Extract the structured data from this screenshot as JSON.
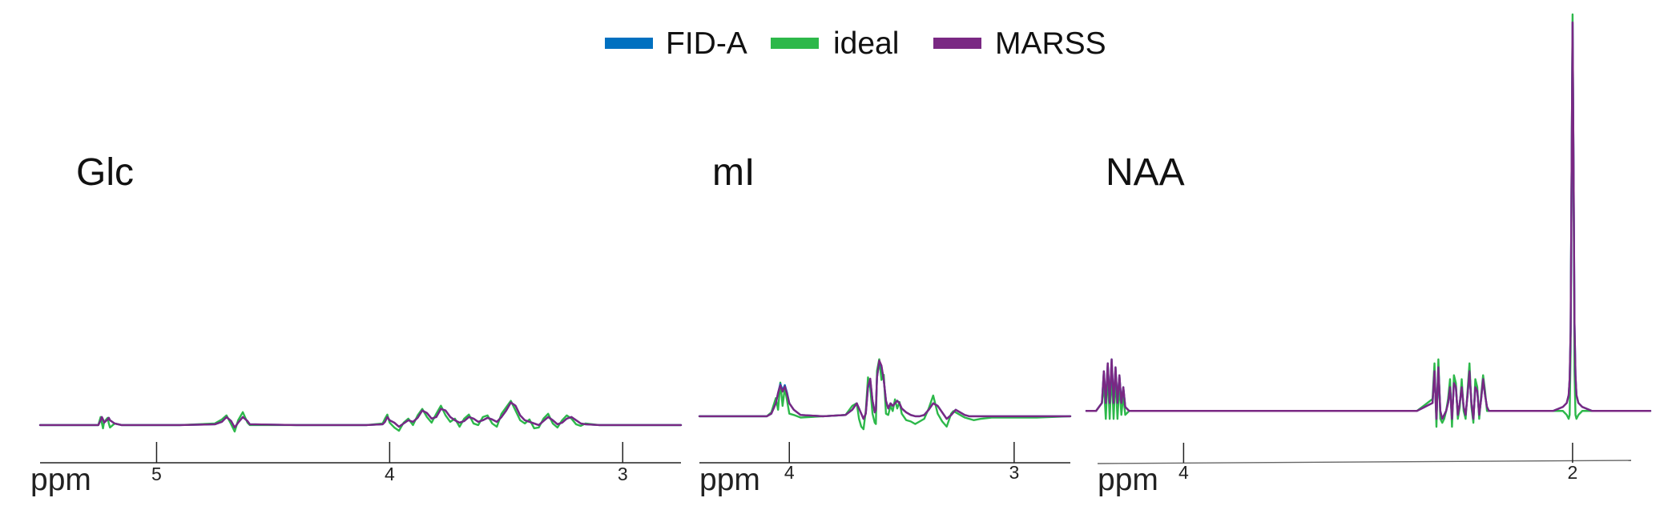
{
  "legend": {
    "items": [
      {
        "label": "FID-A",
        "color": "#0070c0"
      },
      {
        "label": "ideal",
        "color": "#2db84a"
      },
      {
        "label": "MARSS",
        "color": "#7a2883"
      }
    ]
  },
  "chart_data": [
    {
      "type": "line",
      "title": "Glc",
      "xlabel": "ppm",
      "x_reversed": true,
      "xlim": [
        5.5,
        2.75
      ],
      "ylim": [
        -0.05,
        1.0
      ],
      "xticks": [
        5,
        4,
        3
      ],
      "x": [
        5.5,
        5.25,
        5.24,
        5.235,
        5.23,
        5.225,
        5.21,
        5.205,
        5.2,
        5.18,
        5.15,
        4.9,
        4.75,
        4.72,
        4.7,
        4.68,
        4.665,
        4.65,
        4.63,
        4.61,
        4.6,
        4.4,
        4.1,
        4.03,
        4.02,
        4.01,
        4.0,
        3.98,
        3.96,
        3.94,
        3.92,
        3.9,
        3.88,
        3.86,
        3.84,
        3.82,
        3.8,
        3.78,
        3.76,
        3.74,
        3.72,
        3.7,
        3.68,
        3.66,
        3.64,
        3.62,
        3.6,
        3.58,
        3.56,
        3.54,
        3.52,
        3.5,
        3.48,
        3.46,
        3.44,
        3.42,
        3.4,
        3.38,
        3.36,
        3.34,
        3.32,
        3.3,
        3.28,
        3.26,
        3.24,
        3.22,
        3.2,
        3.18,
        3.16,
        3.1,
        2.9,
        2.75
      ],
      "series": [
        {
          "name": "FID-A",
          "values": [
            0,
            0,
            0.06,
            0.1,
            0.07,
            0.03,
            0.07,
            0.09,
            0.06,
            0.02,
            0,
            0,
            0.01,
            0.04,
            0.1,
            0.05,
            -0.03,
            0.03,
            0.1,
            0.05,
            0.01,
            0,
            0,
            0.01,
            0.04,
            0.1,
            0.06,
            0.03,
            -0.02,
            0.02,
            0.06,
            0.04,
            0.09,
            0.18,
            0.15,
            0.08,
            0.1,
            0.2,
            0.18,
            0.1,
            0.06,
            0.03,
            0.05,
            0.1,
            0.08,
            0.04,
            0.06,
            0.09,
            0.07,
            0.04,
            0.1,
            0.18,
            0.28,
            0.24,
            0.12,
            0.06,
            0.04,
            0.02,
            0.0,
            0.05,
            0.1,
            0.06,
            0.01,
            0.03,
            0.08,
            0.1,
            0.06,
            0.02,
            0.01,
            0,
            0,
            0
          ]
        },
        {
          "name": "ideal",
          "values": [
            0,
            0,
            0.1,
            0.03,
            -0.04,
            0.04,
            0.09,
            0.02,
            -0.03,
            0.02,
            0,
            0,
            0.02,
            0.07,
            0.12,
            0.01,
            -0.08,
            0.06,
            0.16,
            0.03,
            0.0,
            0,
            0,
            0.02,
            0.08,
            0.13,
            0.03,
            -0.03,
            -0.07,
            0.03,
            0.08,
            0.0,
            0.12,
            0.2,
            0.1,
            0.03,
            0.14,
            0.24,
            0.12,
            0.04,
            0.08,
            -0.02,
            0.08,
            0.13,
            0.02,
            0.0,
            0.1,
            0.12,
            0.02,
            -0.02,
            0.14,
            0.22,
            0.3,
            0.18,
            0.06,
            0.02,
            0.07,
            -0.04,
            -0.03,
            0.08,
            0.14,
            0.02,
            -0.03,
            0.06,
            0.12,
            0.08,
            0.01,
            -0.01,
            0.02,
            0,
            0,
            0
          ]
        },
        {
          "name": "MARSS",
          "values": [
            0,
            0,
            0.06,
            0.1,
            0.07,
            0.03,
            0.07,
            0.09,
            0.06,
            0.02,
            0,
            0,
            0.01,
            0.04,
            0.1,
            0.05,
            -0.03,
            0.03,
            0.1,
            0.05,
            0.01,
            0,
            0,
            0.01,
            0.04,
            0.1,
            0.06,
            0.03,
            -0.02,
            0.02,
            0.06,
            0.04,
            0.09,
            0.18,
            0.15,
            0.08,
            0.1,
            0.2,
            0.18,
            0.1,
            0.06,
            0.03,
            0.05,
            0.1,
            0.08,
            0.04,
            0.06,
            0.09,
            0.07,
            0.04,
            0.1,
            0.18,
            0.28,
            0.24,
            0.12,
            0.06,
            0.04,
            0.02,
            0.0,
            0.05,
            0.1,
            0.06,
            0.01,
            0.03,
            0.08,
            0.1,
            0.06,
            0.02,
            0.01,
            0,
            0,
            0
          ]
        }
      ]
    },
    {
      "type": "line",
      "title": "mI",
      "xlabel": "ppm",
      "x_reversed": true,
      "xlim": [
        4.4,
        2.75
      ],
      "ylim": [
        -0.05,
        1.0
      ],
      "xticks": [
        4,
        3
      ],
      "x": [
        4.4,
        4.1,
        4.08,
        4.06,
        4.05,
        4.04,
        4.03,
        4.02,
        4.01,
        4.0,
        3.98,
        3.95,
        3.85,
        3.75,
        3.72,
        3.7,
        3.69,
        3.68,
        3.67,
        3.66,
        3.65,
        3.64,
        3.63,
        3.62,
        3.615,
        3.61,
        3.6,
        3.59,
        3.58,
        3.57,
        3.56,
        3.55,
        3.54,
        3.53,
        3.52,
        3.51,
        3.5,
        3.48,
        3.46,
        3.44,
        3.42,
        3.4,
        3.38,
        3.36,
        3.34,
        3.32,
        3.3,
        3.28,
        3.27,
        3.26,
        3.25,
        3.24,
        3.23,
        3.22,
        3.2,
        3.18,
        3.15,
        3.1,
        2.9,
        2.75
      ],
      "series": [
        {
          "name": "FID-A",
          "values": [
            0,
            0,
            0.02,
            0.1,
            0.18,
            0.25,
            0.2,
            0.24,
            0.18,
            0.1,
            0.05,
            0.01,
            0,
            0.01,
            0.05,
            0.1,
            0.06,
            0.02,
            -0.02,
            0.02,
            0.22,
            0.28,
            0.12,
            0.03,
            0.05,
            0.3,
            0.42,
            0.38,
            0.28,
            0.12,
            0.06,
            0.1,
            0.08,
            0.1,
            0.12,
            0.1,
            0.06,
            0.03,
            0.01,
            0.0,
            0.0,
            0.01,
            0.05,
            0.1,
            0.08,
            0.03,
            -0.02,
            0.01,
            0.03,
            0.05,
            0.04,
            0.03,
            0.02,
            0.01,
            0,
            0,
            0,
            0,
            0,
            0
          ]
        },
        {
          "name": "ideal",
          "values": [
            0,
            0,
            0.03,
            0.14,
            0.05,
            0.26,
            0.08,
            0.22,
            0.12,
            0.02,
            0.01,
            -0.01,
            0,
            0.01,
            0.08,
            0.1,
            -0.02,
            -0.08,
            -0.1,
            0.04,
            0.3,
            0.22,
            0.02,
            -0.05,
            -0.06,
            0.35,
            0.44,
            0.28,
            0.32,
            0.02,
            0.01,
            0.08,
            0.04,
            0.13,
            0.06,
            0.11,
            0.02,
            -0.03,
            -0.04,
            -0.06,
            -0.04,
            -0.02,
            0.06,
            0.16,
            0.02,
            -0.04,
            -0.08,
            0.02,
            0.04,
            0.03,
            0.02,
            0.01,
            0.0,
            -0.01,
            -0.02,
            -0.03,
            -0.02,
            -0.01,
            -0.01,
            0
          ]
        },
        {
          "name": "MARSS",
          "values": [
            0,
            0,
            0.02,
            0.1,
            0.18,
            0.24,
            0.19,
            0.23,
            0.17,
            0.1,
            0.05,
            0.01,
            0,
            0.01,
            0.05,
            0.1,
            0.06,
            0.02,
            -0.02,
            0.02,
            0.23,
            0.29,
            0.12,
            0.03,
            0.05,
            0.3,
            0.43,
            0.39,
            0.28,
            0.12,
            0.06,
            0.1,
            0.08,
            0.1,
            0.12,
            0.1,
            0.06,
            0.03,
            0.01,
            0.0,
            0.0,
            0.01,
            0.05,
            0.1,
            0.08,
            0.03,
            -0.02,
            0.01,
            0.03,
            0.05,
            0.04,
            0.03,
            0.02,
            0.01,
            0,
            0,
            0,
            0,
            0,
            0
          ]
        }
      ]
    },
    {
      "type": "line",
      "title": "NAA",
      "xlabel": "ppm",
      "x_reversed": true,
      "xlim": [
        4.5,
        1.6
      ],
      "ylim": [
        -0.05,
        1.0
      ],
      "xticks": [
        4,
        2
      ],
      "x": [
        4.5,
        4.45,
        4.42,
        4.41,
        4.4,
        4.39,
        4.38,
        4.37,
        4.36,
        4.35,
        4.34,
        4.33,
        4.32,
        4.31,
        4.3,
        4.28,
        4.2,
        2.8,
        2.72,
        2.71,
        2.7,
        2.69,
        2.68,
        2.67,
        2.66,
        2.65,
        2.64,
        2.63,
        2.62,
        2.61,
        2.6,
        2.59,
        2.58,
        2.57,
        2.56,
        2.55,
        2.54,
        2.53,
        2.52,
        2.51,
        2.5,
        2.49,
        2.48,
        2.47,
        2.46,
        2.45,
        2.44,
        2.43,
        2.42,
        2.4,
        2.3,
        2.1,
        2.05,
        2.03,
        2.02,
        2.015,
        2.01,
        2.005,
        2.0,
        1.995,
        1.99,
        1.985,
        1.98,
        1.97,
        1.95,
        1.9,
        1.8,
        1.6
      ],
      "series": [
        {
          "name": "FID-A",
          "values": [
            0,
            0,
            0.02,
            0.1,
            0.02,
            0.12,
            0.02,
            0.13,
            0.02,
            0.11,
            0.02,
            0.09,
            0.02,
            0.06,
            0.01,
            0.0,
            0,
            0,
            0.02,
            0.1,
            -0.02,
            0.11,
            0.0,
            -0.02,
            -0.01,
            0.0,
            0.02,
            0.06,
            -0.02,
            0.07,
            0.06,
            -0.01,
            0.02,
            0.06,
            0.01,
            -0.01,
            0.04,
            0.1,
            0.02,
            -0.02,
            0.06,
            0.05,
            -0.01,
            0.03,
            0.08,
            0.04,
            0.01,
            0.0,
            0.0,
            0,
            0,
            0,
            0.01,
            0.02,
            0.04,
            0.08,
            0.2,
            0.6,
            0.98,
            0.62,
            0.22,
            0.09,
            0.04,
            0.02,
            0.01,
            0.0,
            0,
            0
          ]
        },
        {
          "name": "ideal",
          "values": [
            0,
            0,
            0.02,
            0.07,
            -0.02,
            0.1,
            -0.02,
            0.1,
            -0.02,
            0.09,
            -0.02,
            0.07,
            -0.01,
            0.04,
            -0.01,
            0.0,
            0,
            0,
            0.03,
            0.12,
            -0.04,
            0.13,
            -0.02,
            -0.03,
            -0.02,
            0.0,
            0.03,
            0.08,
            -0.04,
            0.09,
            0.07,
            -0.02,
            0.01,
            0.08,
            0.0,
            -0.02,
            0.05,
            0.12,
            0.01,
            -0.03,
            0.08,
            0.06,
            -0.02,
            0.04,
            0.09,
            0.05,
            0.0,
            0.0,
            0.0,
            0,
            0,
            0,
            0.0,
            -0.01,
            -0.02,
            -0.01,
            0.15,
            0.6,
            1.0,
            0.6,
            0.1,
            -0.01,
            -0.02,
            -0.01,
            0.0,
            0.0,
            0,
            0
          ]
        },
        {
          "name": "MARSS",
          "values": [
            0,
            0,
            0.02,
            0.1,
            0.02,
            0.12,
            0.02,
            0.13,
            0.02,
            0.11,
            0.02,
            0.09,
            0.02,
            0.06,
            0.01,
            0.0,
            0,
            0,
            0.02,
            0.1,
            -0.02,
            0.11,
            0.0,
            -0.02,
            -0.01,
            0.0,
            0.02,
            0.06,
            -0.02,
            0.07,
            0.06,
            -0.01,
            0.02,
            0.06,
            0.01,
            -0.01,
            0.04,
            0.1,
            0.02,
            -0.02,
            0.06,
            0.05,
            -0.01,
            0.03,
            0.08,
            0.04,
            0.01,
            0.0,
            0.0,
            0,
            0,
            0,
            0.01,
            0.02,
            0.04,
            0.08,
            0.2,
            0.6,
            0.98,
            0.62,
            0.22,
            0.09,
            0.04,
            0.02,
            0.01,
            0.0,
            0,
            0
          ]
        }
      ]
    }
  ]
}
